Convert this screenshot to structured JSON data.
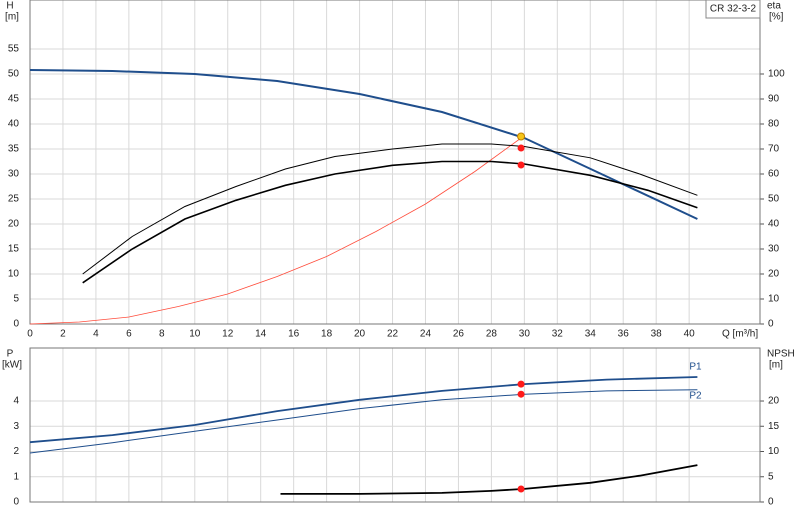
{
  "model": "CR 32-3-2",
  "chart_data": [
    {
      "type": "line",
      "xlabel": "Q [m³/h]",
      "ylabel": "H",
      "yunit": "[m]",
      "y2label": "eta",
      "y2unit": "[%]",
      "xlim": [
        0,
        44.3
      ],
      "ylim": [
        0,
        64.8
      ],
      "y2lim": [
        0,
        129.6
      ],
      "xticks": [
        0,
        2,
        4,
        6,
        8,
        10,
        12,
        14,
        16,
        18,
        20,
        22,
        24,
        26,
        28,
        30,
        32,
        34,
        36,
        38,
        40
      ],
      "yticks": [
        0,
        5,
        10,
        15,
        20,
        25,
        30,
        35,
        40,
        45,
        50,
        55
      ],
      "y2ticks": [
        0,
        10,
        20,
        30,
        40,
        50,
        60,
        70,
        80,
        90,
        100
      ],
      "show_xtick_labels": true,
      "grid": true,
      "series": [
        {
          "color": "#ff4c3b",
          "width": 0.8,
          "axis": "y",
          "x": [
            0,
            3,
            6,
            9,
            12,
            15,
            18,
            21,
            24,
            27,
            29.8
          ],
          "values": [
            0,
            0.4,
            1.4,
            3.5,
            6,
            9.5,
            13.5,
            18.5,
            24,
            30.5,
            37.2
          ]
        },
        {
          "color": "#1f4e8c",
          "width": 2,
          "axis": "y",
          "x": [
            0,
            5,
            10,
            15,
            20,
            25,
            30,
            35,
            40.5
          ],
          "values": [
            50.8,
            50.6,
            50,
            48.6,
            46,
            42.4,
            37.2,
            29.5,
            21
          ]
        },
        {
          "color": "#000000",
          "width": 1,
          "axis": "y2",
          "x": [
            3.2,
            6.2,
            9.4,
            12.5,
            15.5,
            18.5,
            22,
            25,
            28,
            30,
            34,
            37,
            40.5
          ],
          "values": [
            20,
            35,
            47,
            55,
            62,
            67,
            70,
            72,
            72,
            71,
            66.5,
            60,
            51.5
          ]
        },
        {
          "color": "#000000",
          "width": 1.6,
          "axis": "y2",
          "x": [
            3.2,
            6.2,
            9.4,
            12.5,
            15.5,
            18.5,
            22,
            25,
            28,
            30,
            34,
            37.5,
            40.5
          ],
          "values": [
            16.5,
            30,
            42,
            49.5,
            55.5,
            60,
            63.5,
            65,
            65,
            64,
            59.5,
            53.5,
            46.5
          ]
        },
        {
          "color": "#f5c518",
          "marker": true,
          "axis": "y",
          "x": [
            29.8
          ],
          "values": [
            37.5
          ]
        },
        {
          "color": "#ff1a1a",
          "marker": true,
          "axis": "y2",
          "x": [
            29.8,
            29.8
          ],
          "values": [
            70.4,
            63.6
          ]
        }
      ]
    },
    {
      "type": "line",
      "ylabel": "P",
      "yunit": "[kW]",
      "y2label": "NPSH",
      "y2unit": "[m]",
      "xlim": [
        0,
        44.3
      ],
      "ylim": [
        0,
        6.1
      ],
      "y2lim": [
        0,
        30.5
      ],
      "xticks": [
        0,
        2,
        4,
        6,
        8,
        10,
        12,
        14,
        16,
        18,
        20,
        22,
        24,
        26,
        28,
        30,
        32,
        34,
        36,
        38,
        40
      ],
      "yticks": [
        0,
        1,
        2,
        3,
        4
      ],
      "y2ticks": [
        0,
        5,
        10,
        15,
        20
      ],
      "show_xtick_labels": false,
      "grid": true,
      "series": [
        {
          "name": "P1",
          "label_pos": "above",
          "color": "#1f4e8c",
          "width": 1.8,
          "axis": "y",
          "x": [
            0,
            5,
            10,
            15,
            20,
            25,
            30,
            35,
            40.5
          ],
          "values": [
            2.37,
            2.65,
            3.05,
            3.6,
            4.05,
            4.4,
            4.67,
            4.85,
            4.95
          ]
        },
        {
          "name": "P2",
          "label_pos": "below",
          "color": "#1f4e8c",
          "width": 1,
          "axis": "y",
          "x": [
            0,
            5,
            10,
            15,
            20,
            25,
            30,
            35,
            40.5
          ],
          "values": [
            1.94,
            2.35,
            2.8,
            3.25,
            3.7,
            4.05,
            4.27,
            4.4,
            4.45
          ]
        },
        {
          "color": "#000000",
          "width": 1.8,
          "axis": "y2",
          "x": [
            15.2,
            20,
            25,
            28,
            30,
            34,
            37,
            40.5
          ],
          "values": [
            1.6,
            1.6,
            1.8,
            2.2,
            2.6,
            3.8,
            5.2,
            7.3
          ]
        },
        {
          "color": "#ff1a1a",
          "marker": true,
          "axis": "y",
          "x": [
            29.8,
            29.8
          ],
          "values": [
            4.67,
            4.27
          ]
        },
        {
          "color": "#ff1a1a",
          "marker": true,
          "axis": "y2",
          "x": [
            29.8
          ],
          "values": [
            2.57
          ]
        }
      ]
    }
  ]
}
